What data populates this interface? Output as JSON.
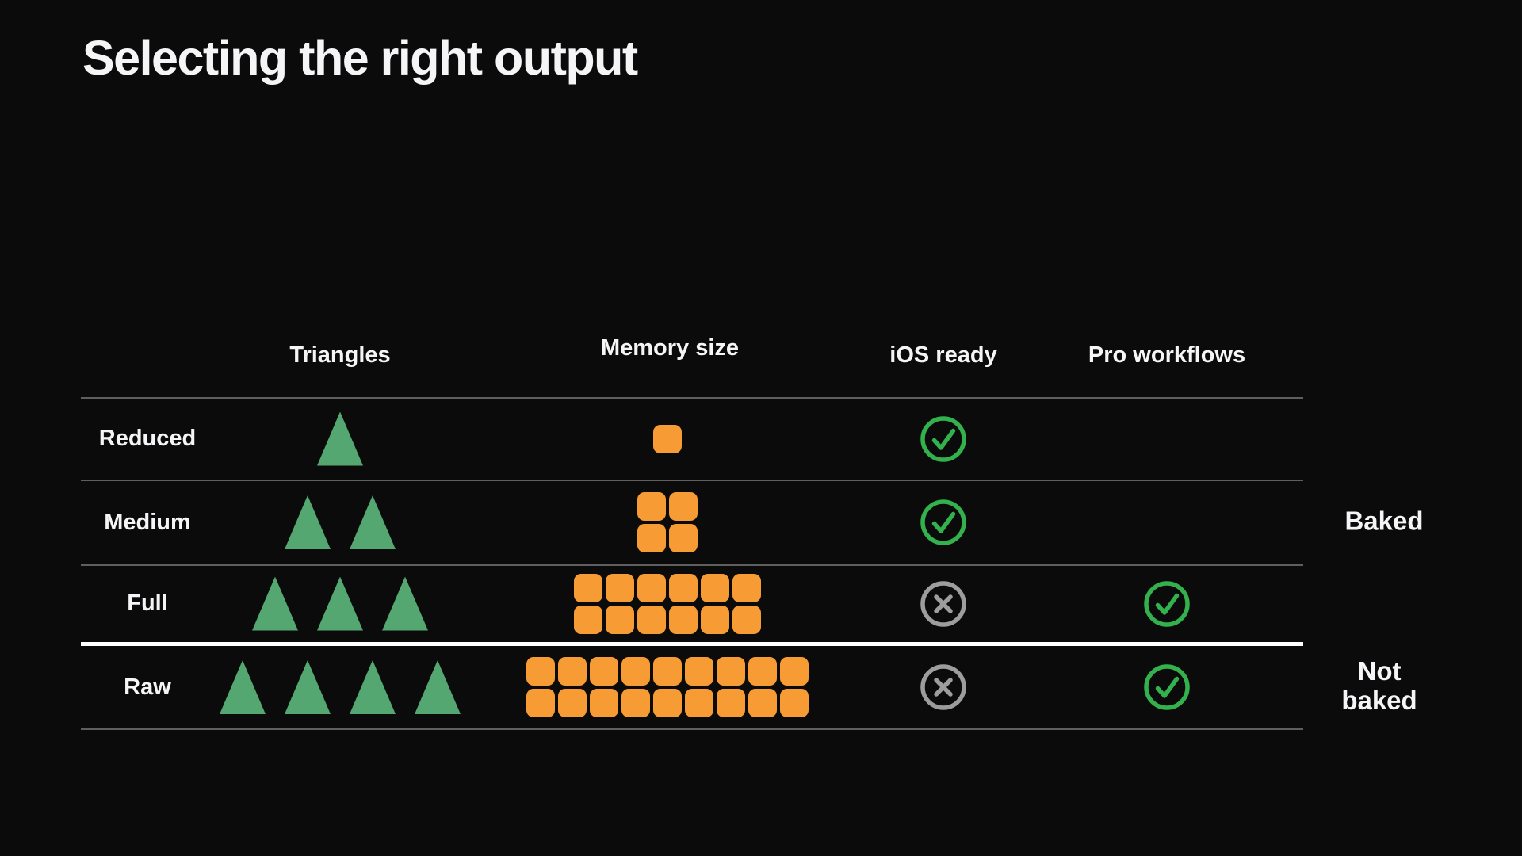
{
  "slide": {
    "title": "Selecting the right output"
  },
  "colors": {
    "bg": "#0b0b0b",
    "text": "#f5f5f7",
    "triangle": "#54a771",
    "square": "#f79c35",
    "check": "#32b14d",
    "cross": "#9d9d9d",
    "line": "#5f5f5f",
    "divider": "#ffffff"
  },
  "table": {
    "columns": [
      "Triangles",
      "Memory size",
      "iOS ready",
      "Pro workflows"
    ],
    "rows": [
      {
        "label": "Reduced",
        "triangles": 1,
        "memory": {
          "columns": 1,
          "rows": 1,
          "count": 1
        },
        "ios_ready": "check",
        "pro_workflows": "none"
      },
      {
        "label": "Medium",
        "triangles": 2,
        "memory": {
          "columns": 2,
          "rows": 2,
          "count": 4
        },
        "ios_ready": "check",
        "pro_workflows": "none"
      },
      {
        "label": "Full",
        "triangles": 3,
        "memory": {
          "columns": 6,
          "rows": 2,
          "count": 12
        },
        "ios_ready": "cross",
        "pro_workflows": "check"
      },
      {
        "label": "Raw",
        "triangles": 4,
        "memory": {
          "columns": 9,
          "rows": 2,
          "count": 18
        },
        "ios_ready": "cross",
        "pro_workflows": "check"
      }
    ]
  },
  "side_labels": [
    {
      "text": "Baked"
    },
    {
      "text": "Not baked"
    }
  ]
}
